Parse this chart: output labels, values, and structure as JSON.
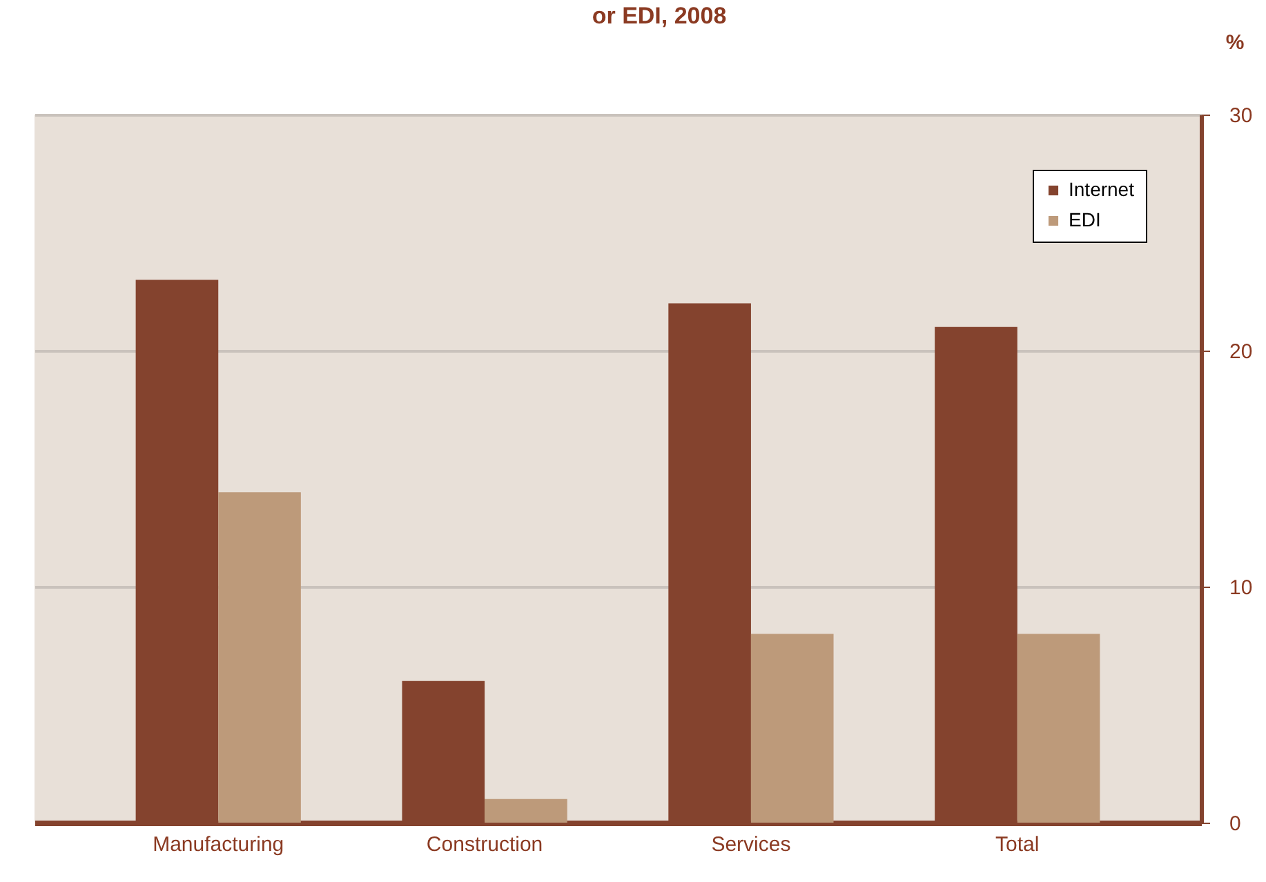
{
  "chart_data": {
    "type": "bar",
    "title": "or EDI, 2008",
    "ylabel": "%",
    "categories": [
      "Manufacturing",
      "Construction",
      "Services",
      "Total"
    ],
    "series": [
      {
        "name": "Internet",
        "color": "#84432e",
        "values": [
          23,
          6,
          22,
          21
        ]
      },
      {
        "name": "EDI",
        "color": "#bd9a7a",
        "values": [
          14,
          1,
          8,
          8
        ]
      }
    ],
    "ylim": [
      0,
      30
    ],
    "yticks": [
      0,
      10,
      20,
      30
    ],
    "grid": "y",
    "legend": "top right"
  }
}
